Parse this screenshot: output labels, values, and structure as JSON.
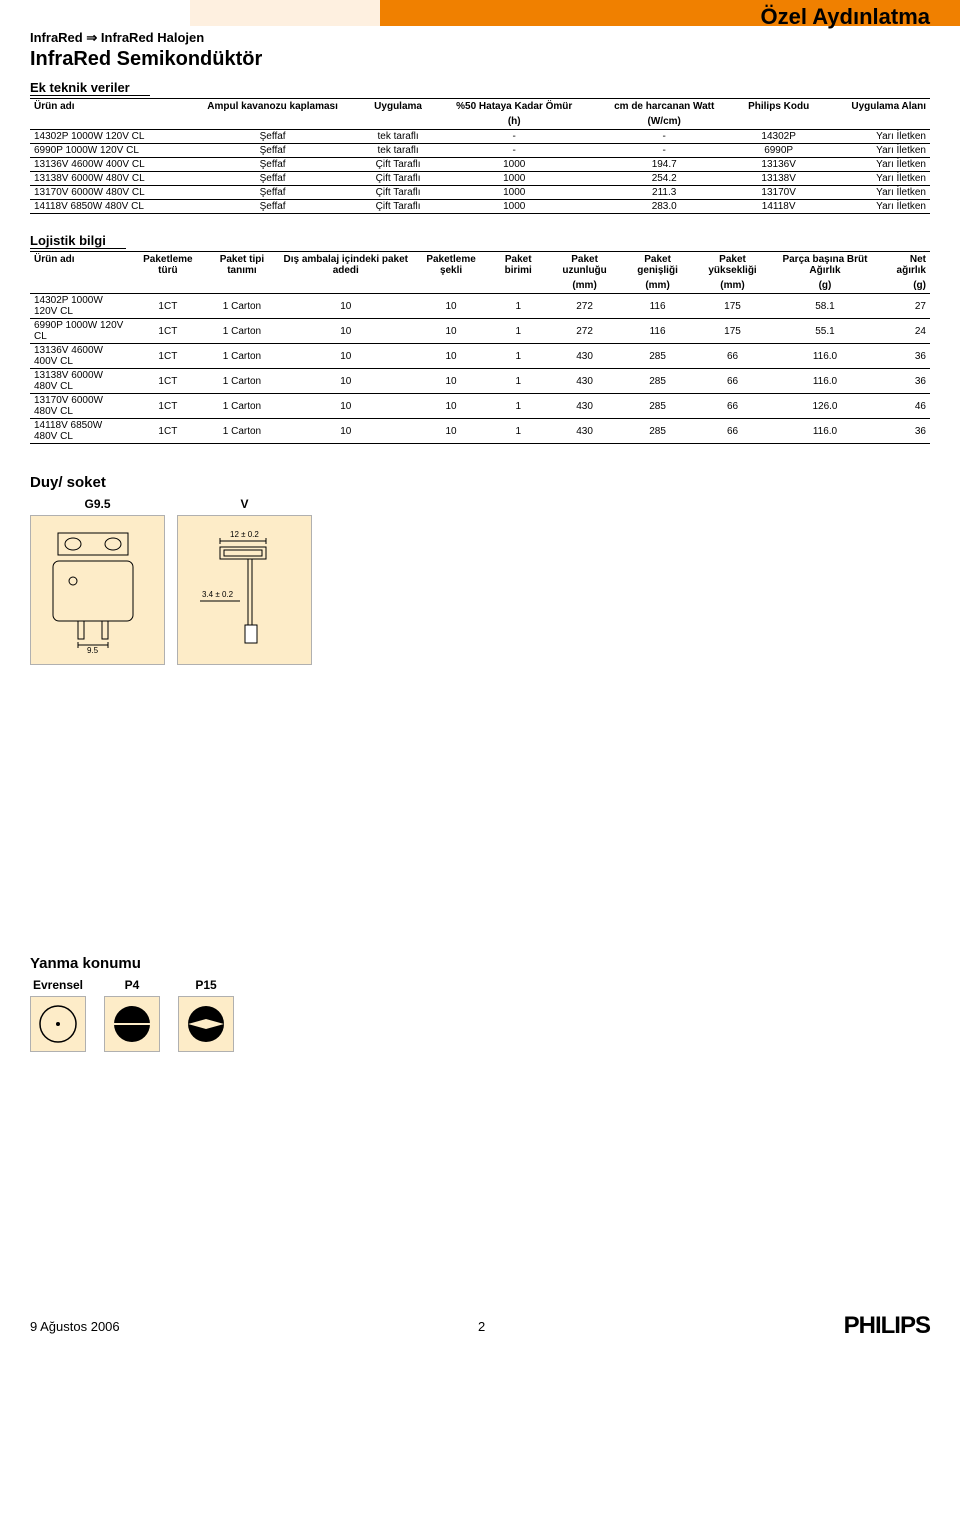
{
  "header": {
    "category_title": "Özel Aydınlatma",
    "breadcrumb_a": "InfraRed",
    "breadcrumb_arrow": "⇒",
    "breadcrumb_b": "InfraRed Halojen",
    "main_title": "InfraRed Semikondüktör"
  },
  "tech": {
    "section": "Ek teknik veriler",
    "cols": [
      "Ürün adı",
      "Ampul kavanozu kaplaması",
      "Uygulama",
      "%50 Hataya Kadar Ömür",
      "cm de harcanan Watt",
      "Philips Kodu",
      "Uygulama Alanı"
    ],
    "units": [
      "",
      "",
      "",
      "(h)",
      "(W/cm)",
      "",
      ""
    ],
    "rows": [
      [
        "14302P 1000W 120V CL",
        "Şeffaf",
        "tek taraflı",
        "-",
        "-",
        "14302P",
        "Yarı İletken"
      ],
      [
        "6990P 1000W 120V CL",
        "Şeffaf",
        "tek taraflı",
        "-",
        "-",
        "6990P",
        "Yarı İletken"
      ],
      [
        "13136V 4600W 400V CL",
        "Şeffaf",
        "Çift Taraflı",
        "1000",
        "194.7",
        "13136V",
        "Yarı İletken"
      ],
      [
        "13138V 6000W 480V CL",
        "Şeffaf",
        "Çift Taraflı",
        "1000",
        "254.2",
        "13138V",
        "Yarı İletken"
      ],
      [
        "13170V 6000W 480V CL",
        "Şeffaf",
        "Çift Taraflı",
        "1000",
        "211.3",
        "13170V",
        "Yarı İletken"
      ],
      [
        "14118V 6850W 480V CL",
        "Şeffaf",
        "Çift Taraflı",
        "1000",
        "283.0",
        "14118V",
        "Yarı İletken"
      ]
    ]
  },
  "log": {
    "section": "Lojistik bilgi",
    "cols": [
      "Ürün adı",
      "Paketleme türü",
      "Paket tipi tanımı",
      "Dış ambalaj içindeki paket adedi",
      "Paketleme şekli",
      "Paket birimi",
      "Paket uzunluğu",
      "Paket genişliği",
      "Paket yüksekliği",
      "Parça başına Brüt Ağırlık",
      "Net ağırlık"
    ],
    "units": [
      "",
      "",
      "",
      "",
      "",
      "",
      "(mm)",
      "(mm)",
      "(mm)",
      "(g)",
      "(g)"
    ],
    "rows": [
      [
        "14302P 1000W 120V CL",
        "1CT",
        "1 Carton",
        "10",
        "10",
        "1",
        "272",
        "116",
        "175",
        "58.1",
        "27"
      ],
      [
        "6990P 1000W 120V CL",
        "1CT",
        "1 Carton",
        "10",
        "10",
        "1",
        "272",
        "116",
        "175",
        "55.1",
        "24"
      ],
      [
        "13136V 4600W 400V CL",
        "1CT",
        "1 Carton",
        "10",
        "10",
        "1",
        "430",
        "285",
        "66",
        "116.0",
        "36"
      ],
      [
        "13138V 6000W 480V CL",
        "1CT",
        "1 Carton",
        "10",
        "10",
        "1",
        "430",
        "285",
        "66",
        "116.0",
        "36"
      ],
      [
        "13170V 6000W 480V CL",
        "1CT",
        "1 Carton",
        "10",
        "10",
        "1",
        "430",
        "285",
        "66",
        "126.0",
        "46"
      ],
      [
        "14118V 6850W 480V CL",
        "1CT",
        "1 Carton",
        "10",
        "10",
        "1",
        "430",
        "285",
        "66",
        "116.0",
        "36"
      ]
    ]
  },
  "socket": {
    "section": "Duy/ soket",
    "labels": [
      "G9.5",
      "V"
    ],
    "dims": {
      "w": "12 ± 0.2",
      "h": "3.4 ± 0.2",
      "pin": "9.5"
    }
  },
  "burn": {
    "section": "Yanma konumu",
    "labels": [
      "Evrensel",
      "P4",
      "P15"
    ]
  },
  "footer": {
    "date": "9 Ağustos 2006",
    "page": "2",
    "logo": "PHILIPS"
  }
}
